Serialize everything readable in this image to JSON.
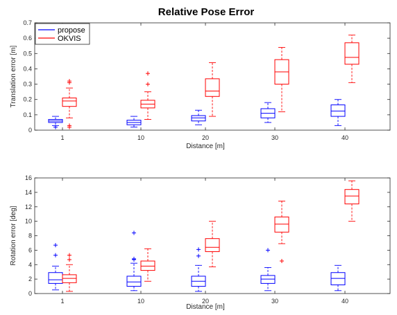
{
  "figure": {
    "title": "Relative Pose Error"
  },
  "chart_data": [
    {
      "type": "box",
      "title": "Relative Pose Error",
      "xlabel": "Distance [m]",
      "ylabel": "Translation error [m]",
      "categories": [
        "1",
        "10",
        "20",
        "30",
        "40"
      ],
      "ylim": [
        0,
        0.7
      ],
      "yticks": [
        0,
        0.1,
        0.2,
        0.3,
        0.4,
        0.5,
        0.6,
        0.7
      ],
      "grid": false,
      "legend": {
        "placement": "top-left",
        "entries": [
          "propose",
          "OKVIS"
        ]
      },
      "series": [
        {
          "name": "propose",
          "color": "#0000ff",
          "boxes": [
            {
              "whisker_low": 0.03,
              "q1": 0.05,
              "median": 0.06,
              "q3": 0.07,
              "whisker_high": 0.09,
              "outliers": [
                0.02
              ]
            },
            {
              "whisker_low": 0.02,
              "q1": 0.035,
              "median": 0.05,
              "q3": 0.065,
              "whisker_high": 0.09,
              "outliers": []
            },
            {
              "whisker_low": 0.035,
              "q1": 0.06,
              "median": 0.08,
              "q3": 0.095,
              "whisker_high": 0.13,
              "outliers": []
            },
            {
              "whisker_low": 0.05,
              "q1": 0.08,
              "median": 0.11,
              "q3": 0.14,
              "whisker_high": 0.18,
              "outliers": []
            },
            {
              "whisker_low": 0.03,
              "q1": 0.09,
              "median": 0.125,
              "q3": 0.165,
              "whisker_high": 0.2,
              "outliers": []
            }
          ]
        },
        {
          "name": "OKVIS",
          "color": "#ff0000",
          "boxes": [
            {
              "whisker_low": 0.08,
              "q1": 0.155,
              "median": 0.19,
              "q3": 0.21,
              "whisker_high": 0.275,
              "outliers": [
                0.31,
                0.32,
                0.02,
                0.03
              ]
            },
            {
              "whisker_low": 0.07,
              "q1": 0.145,
              "median": 0.17,
              "q3": 0.195,
              "whisker_high": 0.25,
              "outliers": [
                0.3,
                0.37
              ]
            },
            {
              "whisker_low": 0.09,
              "q1": 0.22,
              "median": 0.255,
              "q3": 0.335,
              "whisker_high": 0.44,
              "outliers": []
            },
            {
              "whisker_low": 0.12,
              "q1": 0.3,
              "median": 0.38,
              "q3": 0.46,
              "whisker_high": 0.54,
              "outliers": []
            },
            {
              "whisker_low": 0.31,
              "q1": 0.43,
              "median": 0.475,
              "q3": 0.57,
              "whisker_high": 0.62,
              "outliers": []
            }
          ]
        }
      ]
    },
    {
      "type": "box",
      "xlabel": "Distance [m]",
      "ylabel": "Rotation error [deg]",
      "categories": [
        "1",
        "10",
        "20",
        "30",
        "40"
      ],
      "ylim": [
        0,
        16
      ],
      "yticks": [
        0,
        2,
        4,
        6,
        8,
        10,
        12,
        14,
        16
      ],
      "grid": false,
      "series": [
        {
          "name": "propose",
          "color": "#0000ff",
          "boxes": [
            {
              "whisker_low": 0.5,
              "q1": 1.4,
              "median": 1.9,
              "q3": 2.9,
              "whisker_high": 3.8,
              "outliers": [
                5.3,
                6.7
              ]
            },
            {
              "whisker_low": 0.4,
              "q1": 1.0,
              "median": 1.6,
              "q3": 2.4,
              "whisker_high": 4.2,
              "outliers": [
                4.7,
                4.8,
                8.4
              ]
            },
            {
              "whisker_low": 0.3,
              "q1": 1.0,
              "median": 1.7,
              "q3": 2.4,
              "whisker_high": 3.9,
              "outliers": [
                5.2,
                6.1
              ]
            },
            {
              "whisker_low": 0.4,
              "q1": 1.4,
              "median": 2.0,
              "q3": 2.5,
              "whisker_high": 3.6,
              "outliers": [
                6.0
              ]
            },
            {
              "whisker_low": 0.4,
              "q1": 1.2,
              "median": 2.1,
              "q3": 2.9,
              "whisker_high": 3.9,
              "outliers": []
            }
          ]
        },
        {
          "name": "OKVIS",
          "color": "#ff0000",
          "boxes": [
            {
              "whisker_low": 0.3,
              "q1": 1.5,
              "median": 2.1,
              "q3": 2.6,
              "whisker_high": 4.0,
              "outliers": [
                4.7,
                5.3
              ]
            },
            {
              "whisker_low": 1.7,
              "q1": 3.2,
              "median": 3.8,
              "q3": 4.5,
              "whisker_high": 6.2,
              "outliers": []
            },
            {
              "whisker_low": 3.7,
              "q1": 5.8,
              "median": 6.4,
              "q3": 7.6,
              "whisker_high": 10.0,
              "outliers": []
            },
            {
              "whisker_low": 6.9,
              "q1": 8.5,
              "median": 9.6,
              "q3": 10.6,
              "whisker_high": 12.8,
              "outliers": [
                4.5
              ]
            },
            {
              "whisker_low": 10.0,
              "q1": 12.4,
              "median": 13.5,
              "q3": 14.4,
              "whisker_high": 15.6,
              "outliers": []
            }
          ]
        }
      ]
    }
  ]
}
